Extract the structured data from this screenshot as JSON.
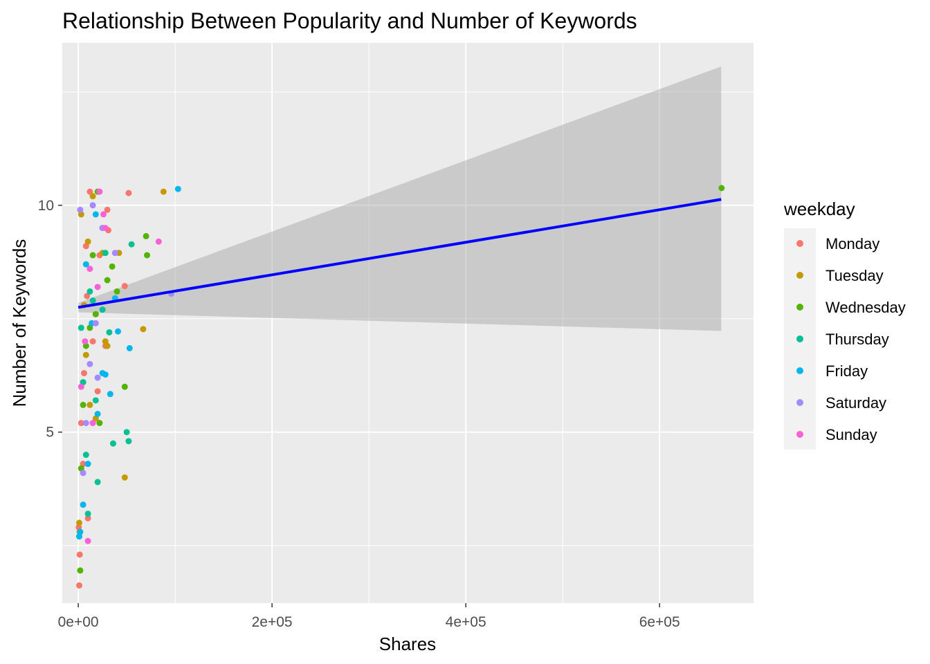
{
  "chart_data": {
    "type": "scatter",
    "title": "Relationship Between Popularity and Number of Keywords",
    "xlabel": "Shares",
    "ylabel": "Number of Keywords",
    "xlim": [
      -16500,
      697000
    ],
    "ylim": [
      1.23,
      13.58
    ],
    "x_ticks": [
      0,
      200000,
      400000,
      600000
    ],
    "x_tick_labels": [
      "0e+00",
      "2e+05",
      "4e+05",
      "6e+05"
    ],
    "y_ticks": [
      5,
      10
    ],
    "y_tick_labels": [
      "5",
      "10"
    ],
    "grid": true,
    "legend": {
      "title": "weekday",
      "placement": "right",
      "entries": [
        {
          "name": "Monday",
          "color": "#F8766D"
        },
        {
          "name": "Tuesday",
          "color": "#C49A00"
        },
        {
          "name": "Wednesday",
          "color": "#53B400"
        },
        {
          "name": "Thursday",
          "color": "#00C094"
        },
        {
          "name": "Friday",
          "color": "#00B6EB"
        },
        {
          "name": "Saturday",
          "color": "#A58AFF"
        },
        {
          "name": "Sunday",
          "color": "#FB61D7"
        }
      ]
    },
    "trend_line": {
      "method": "lm",
      "color": "#0000FF",
      "x": [
        0,
        663600
      ],
      "y": [
        7.75,
        10.13
      ],
      "ci_upper": [
        7.85,
        13.06
      ],
      "ci_lower": [
        7.64,
        7.23
      ]
    },
    "series": [
      {
        "name": "Monday",
        "color": "#F8766D",
        "x": [
          52000,
          48000,
          12000,
          8000,
          31000,
          15000,
          28000,
          20000,
          5000,
          10000,
          1500,
          1000,
          500,
          22000,
          18000,
          6000,
          3000,
          30000,
          9000
        ],
        "y": [
          10.27,
          8.22,
          10.3,
          9.1,
          9.45,
          7.0,
          6.9,
          5.9,
          4.3,
          3.1,
          2.3,
          1.62,
          2.9,
          8.9,
          7.6,
          6.3,
          5.2,
          9.9,
          8.0
        ]
      },
      {
        "name": "Tuesday",
        "color": "#C49A00",
        "x": [
          88000,
          67000,
          48000,
          42000,
          28000,
          18000,
          10000,
          5000,
          1500,
          1000,
          25000,
          15000,
          8000,
          30000,
          3000,
          6000,
          12000
        ],
        "y": [
          10.3,
          7.27,
          4.0,
          8.95,
          7.0,
          5.3,
          9.2,
          6.1,
          2.8,
          3.0,
          8.95,
          10.2,
          6.7,
          6.9,
          9.8,
          7.8,
          5.6
        ]
      },
      {
        "name": "Wednesday",
        "color": "#53B400",
        "x": [
          664000,
          70000,
          71000,
          48000,
          35000,
          30000,
          20000,
          25000,
          12000,
          8000,
          5000,
          3000,
          2000,
          15000,
          22000,
          18000,
          40000
        ],
        "y": [
          10.38,
          9.32,
          8.9,
          6.0,
          8.65,
          8.35,
          10.3,
          9.5,
          7.3,
          6.9,
          5.6,
          4.2,
          1.95,
          8.9,
          5.2,
          7.6,
          8.1
        ]
      },
      {
        "name": "Thursday",
        "color": "#00C094",
        "x": [
          55000,
          50000,
          52000,
          36000,
          28000,
          20000,
          15000,
          10000,
          5000,
          8000,
          12000,
          25000,
          18000,
          3000,
          32000
        ],
        "y": [
          9.14,
          5.0,
          4.8,
          4.75,
          8.95,
          3.9,
          7.9,
          3.2,
          6.1,
          4.5,
          8.1,
          7.7,
          5.7,
          7.3,
          7.2
        ]
      },
      {
        "name": "Friday",
        "color": "#00B6EB",
        "x": [
          103000,
          53000,
          41000,
          38000,
          33000,
          28000,
          20000,
          14000,
          10000,
          5000,
          2000,
          1000,
          8000,
          18000,
          25000
        ],
        "y": [
          10.36,
          6.85,
          7.22,
          7.95,
          5.84,
          6.27,
          5.4,
          7.4,
          4.3,
          3.4,
          2.8,
          2.7,
          8.7,
          9.8,
          6.3
        ]
      },
      {
        "name": "Saturday",
        "color": "#A58AFF",
        "x": [
          96000,
          38000,
          25000,
          18000,
          12000,
          8000,
          5000,
          2000,
          15000,
          20000
        ],
        "y": [
          8.05,
          8.95,
          9.5,
          7.4,
          6.5,
          5.2,
          4.1,
          9.9,
          10.0,
          6.2
        ]
      },
      {
        "name": "Sunday",
        "color": "#FB61D7",
        "x": [
          83000,
          28000,
          26000,
          20000,
          15000,
          10000,
          7000,
          3000,
          22000,
          12000
        ],
        "y": [
          9.2,
          9.5,
          9.8,
          8.2,
          5.2,
          2.6,
          7.0,
          6.0,
          10.3,
          8.6
        ]
      }
    ]
  }
}
